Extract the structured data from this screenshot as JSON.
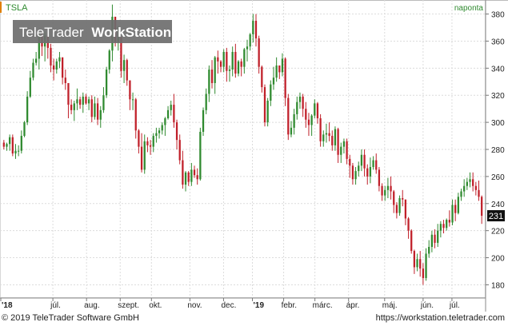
{
  "symbol": "TSLA",
  "interval": "naponta",
  "watermark": {
    "brand": "TeleTrader",
    "product": "WorkStation"
  },
  "last_price_label": "231",
  "footer": {
    "copyright": "© 2019 TeleTrader Software GmbH",
    "url": "https://workstation.teletrader.com"
  },
  "colors": {
    "up": "#2f8a2f",
    "down": "#c0202a",
    "accent": "#e08000",
    "label_bg": "#111111"
  },
  "chart_data": {
    "type": "candlestick",
    "title": "TSLA",
    "ylim": [
      172,
      388
    ],
    "yticks": [
      180,
      200,
      220,
      240,
      260,
      280,
      300,
      320,
      340,
      360,
      380
    ],
    "x_tick_labels": [
      "'18",
      "júl.",
      "aug.",
      "szept.",
      "okt.",
      "nov.",
      "dec.",
      "'19",
      "febr.",
      "márc.",
      "ápr.",
      "máj.",
      "jún.",
      "júl."
    ],
    "grid": true,
    "ohlc": [
      [
        285,
        287,
        280,
        282
      ],
      [
        282,
        285,
        279,
        284
      ],
      [
        284,
        291,
        279,
        289
      ],
      [
        289,
        291,
        275,
        277
      ],
      [
        277,
        284,
        273,
        279
      ],
      [
        279,
        283,
        275,
        279
      ],
      [
        279,
        294,
        277,
        290
      ],
      [
        290,
        301,
        289,
        300
      ],
      [
        300,
        323,
        298,
        319
      ],
      [
        319,
        338,
        318,
        333
      ],
      [
        333,
        347,
        331,
        344
      ],
      [
        344,
        352,
        342,
        347
      ],
      [
        347,
        366,
        339,
        364
      ],
      [
        364,
        367,
        349,
        356
      ],
      [
        356,
        367,
        345,
        364
      ],
      [
        364,
        370,
        347,
        355
      ],
      [
        355,
        358,
        337,
        342
      ],
      [
        342,
        347,
        331,
        339
      ],
      [
        339,
        347,
        336,
        345
      ],
      [
        345,
        352,
        340,
        348
      ],
      [
        348,
        348,
        328,
        333
      ],
      [
        333,
        339,
        324,
        329
      ],
      [
        329,
        329,
        303,
        313
      ],
      [
        313,
        317,
        306,
        309
      ],
      [
        309,
        316,
        301,
        314
      ],
      [
        314,
        325,
        309,
        317
      ],
      [
        317,
        319,
        310,
        313
      ],
      [
        313,
        322,
        307,
        319
      ],
      [
        319,
        321,
        313,
        314
      ],
      [
        314,
        319,
        309,
        317
      ],
      [
        317,
        320,
        300,
        304
      ],
      [
        304,
        319,
        302,
        314
      ],
      [
        314,
        318,
        298,
        302
      ],
      [
        302,
        312,
        296,
        309
      ],
      [
        309,
        326,
        307,
        320
      ],
      [
        320,
        341,
        318,
        339
      ],
      [
        339,
        354,
        336,
        353
      ],
      [
        353,
        387,
        345,
        378
      ],
      [
        378,
        378,
        356,
        359
      ],
      [
        359,
        371,
        353,
        363
      ],
      [
        363,
        363,
        333,
        338
      ],
      [
        338,
        350,
        329,
        346
      ],
      [
        346,
        347,
        327,
        331
      ],
      [
        331,
        331,
        309,
        317
      ],
      [
        317,
        322,
        309,
        317
      ],
      [
        317,
        318,
        288,
        294
      ],
      [
        294,
        295,
        277,
        282
      ],
      [
        282,
        292,
        263,
        265
      ],
      [
        265,
        291,
        262,
        286
      ],
      [
        286,
        289,
        278,
        283
      ],
      [
        283,
        287,
        276,
        282
      ],
      [
        282,
        292,
        278,
        290
      ],
      [
        290,
        296,
        285,
        292
      ],
      [
        292,
        296,
        288,
        294
      ],
      [
        294,
        300,
        291,
        298
      ],
      [
        298,
        304,
        290,
        303
      ],
      [
        303,
        312,
        302,
        309
      ],
      [
        309,
        316,
        305,
        313
      ],
      [
        313,
        321,
        296,
        300
      ],
      [
        300,
        302,
        280,
        287
      ],
      [
        287,
        291,
        269,
        272
      ],
      [
        272,
        279,
        251,
        254
      ],
      [
        254,
        264,
        249,
        263
      ],
      [
        263,
        264,
        253,
        256
      ],
      [
        256,
        270,
        253,
        265
      ],
      [
        265,
        268,
        259,
        261
      ],
      [
        261,
        266,
        254,
        258
      ],
      [
        258,
        296,
        257,
        293
      ],
      [
        293,
        311,
        290,
        309
      ],
      [
        309,
        325,
        306,
        321
      ],
      [
        321,
        342,
        315,
        339
      ],
      [
        339,
        346,
        325,
        329
      ],
      [
        329,
        349,
        321,
        348
      ],
      [
        348,
        353,
        336,
        345
      ],
      [
        345,
        346,
        337,
        341
      ],
      [
        341,
        354,
        337,
        352
      ],
      [
        352,
        355,
        330,
        338
      ],
      [
        338,
        342,
        330,
        339
      ],
      [
        339,
        356,
        334,
        352
      ],
      [
        352,
        358,
        333,
        336
      ],
      [
        336,
        346,
        334,
        345
      ],
      [
        345,
        347,
        334,
        341
      ],
      [
        341,
        355,
        336,
        354
      ],
      [
        354,
        361,
        345,
        356
      ],
      [
        356,
        366,
        353,
        365
      ],
      [
        365,
        380,
        359,
        375
      ],
      [
        375,
        380,
        356,
        362
      ],
      [
        362,
        364,
        336,
        341
      ],
      [
        341,
        342,
        322,
        326
      ],
      [
        326,
        328,
        297,
        300
      ],
      [
        300,
        318,
        297,
        316
      ],
      [
        316,
        331,
        312,
        328
      ],
      [
        328,
        341,
        324,
        333
      ],
      [
        333,
        348,
        330,
        342
      ],
      [
        342,
        342,
        332,
        337
      ],
      [
        337,
        351,
        334,
        347
      ],
      [
        347,
        348,
        312,
        318
      ],
      [
        318,
        321,
        287,
        291
      ],
      [
        291,
        301,
        289,
        296
      ],
      [
        296,
        310,
        291,
        306
      ],
      [
        306,
        319,
        302,
        315
      ],
      [
        315,
        322,
        310,
        319
      ],
      [
        319,
        321,
        304,
        310
      ],
      [
        310,
        315,
        296,
        302
      ],
      [
        302,
        307,
        290,
        298
      ],
      [
        298,
        306,
        290,
        305
      ],
      [
        305,
        317,
        303,
        314
      ],
      [
        314,
        315,
        299,
        303
      ],
      [
        303,
        306,
        282,
        286
      ],
      [
        286,
        294,
        282,
        291
      ],
      [
        291,
        299,
        285,
        292
      ],
      [
        292,
        300,
        286,
        290
      ],
      [
        290,
        294,
        279,
        283
      ],
      [
        283,
        297,
        279,
        295
      ],
      [
        295,
        296,
        270,
        276
      ],
      [
        276,
        285,
        270,
        282
      ],
      [
        282,
        288,
        277,
        286
      ],
      [
        286,
        288,
        269,
        273
      ],
      [
        273,
        276,
        259,
        268
      ],
      [
        268,
        270,
        254,
        258
      ],
      [
        258,
        267,
        254,
        264
      ],
      [
        264,
        271,
        260,
        268
      ],
      [
        268,
        280,
        264,
        276
      ],
      [
        276,
        280,
        260,
        266
      ],
      [
        266,
        269,
        254,
        260
      ],
      [
        260,
        274,
        255,
        267
      ],
      [
        267,
        275,
        265,
        272
      ],
      [
        272,
        277,
        262,
        265
      ],
      [
        265,
        267,
        249,
        253
      ],
      [
        253,
        255,
        242,
        246
      ],
      [
        246,
        253,
        242,
        250
      ],
      [
        250,
        259,
        244,
        253
      ],
      [
        253,
        260,
        243,
        249
      ],
      [
        249,
        250,
        233,
        239
      ],
      [
        239,
        241,
        229,
        233
      ],
      [
        233,
        246,
        231,
        244
      ],
      [
        244,
        250,
        238,
        243
      ],
      [
        243,
        243,
        224,
        229
      ],
      [
        229,
        230,
        214,
        220
      ],
      [
        220,
        221,
        203,
        205
      ],
      [
        205,
        206,
        188,
        193
      ],
      [
        193,
        203,
        190,
        199
      ],
      [
        199,
        205,
        186,
        192
      ],
      [
        192,
        196,
        180,
        185
      ],
      [
        185,
        207,
        183,
        203
      ],
      [
        203,
        213,
        200,
        208
      ],
      [
        208,
        220,
        204,
        217
      ],
      [
        217,
        221,
        207,
        211
      ],
      [
        211,
        225,
        208,
        220
      ],
      [
        220,
        227,
        215,
        225
      ],
      [
        225,
        228,
        218,
        222
      ],
      [
        222,
        229,
        220,
        228
      ],
      [
        228,
        235,
        223,
        226
      ],
      [
        226,
        243,
        224,
        239
      ],
      [
        239,
        243,
        227,
        233
      ],
      [
        233,
        248,
        232,
        245
      ],
      [
        245,
        251,
        242,
        249
      ],
      [
        249,
        258,
        245,
        253
      ],
      [
        253,
        259,
        250,
        256
      ],
      [
        256,
        263,
        252,
        258
      ],
      [
        258,
        263,
        249,
        253
      ],
      [
        253,
        256,
        246,
        250
      ],
      [
        250,
        257,
        242,
        245
      ],
      [
        245,
        246,
        225,
        231
      ]
    ]
  }
}
